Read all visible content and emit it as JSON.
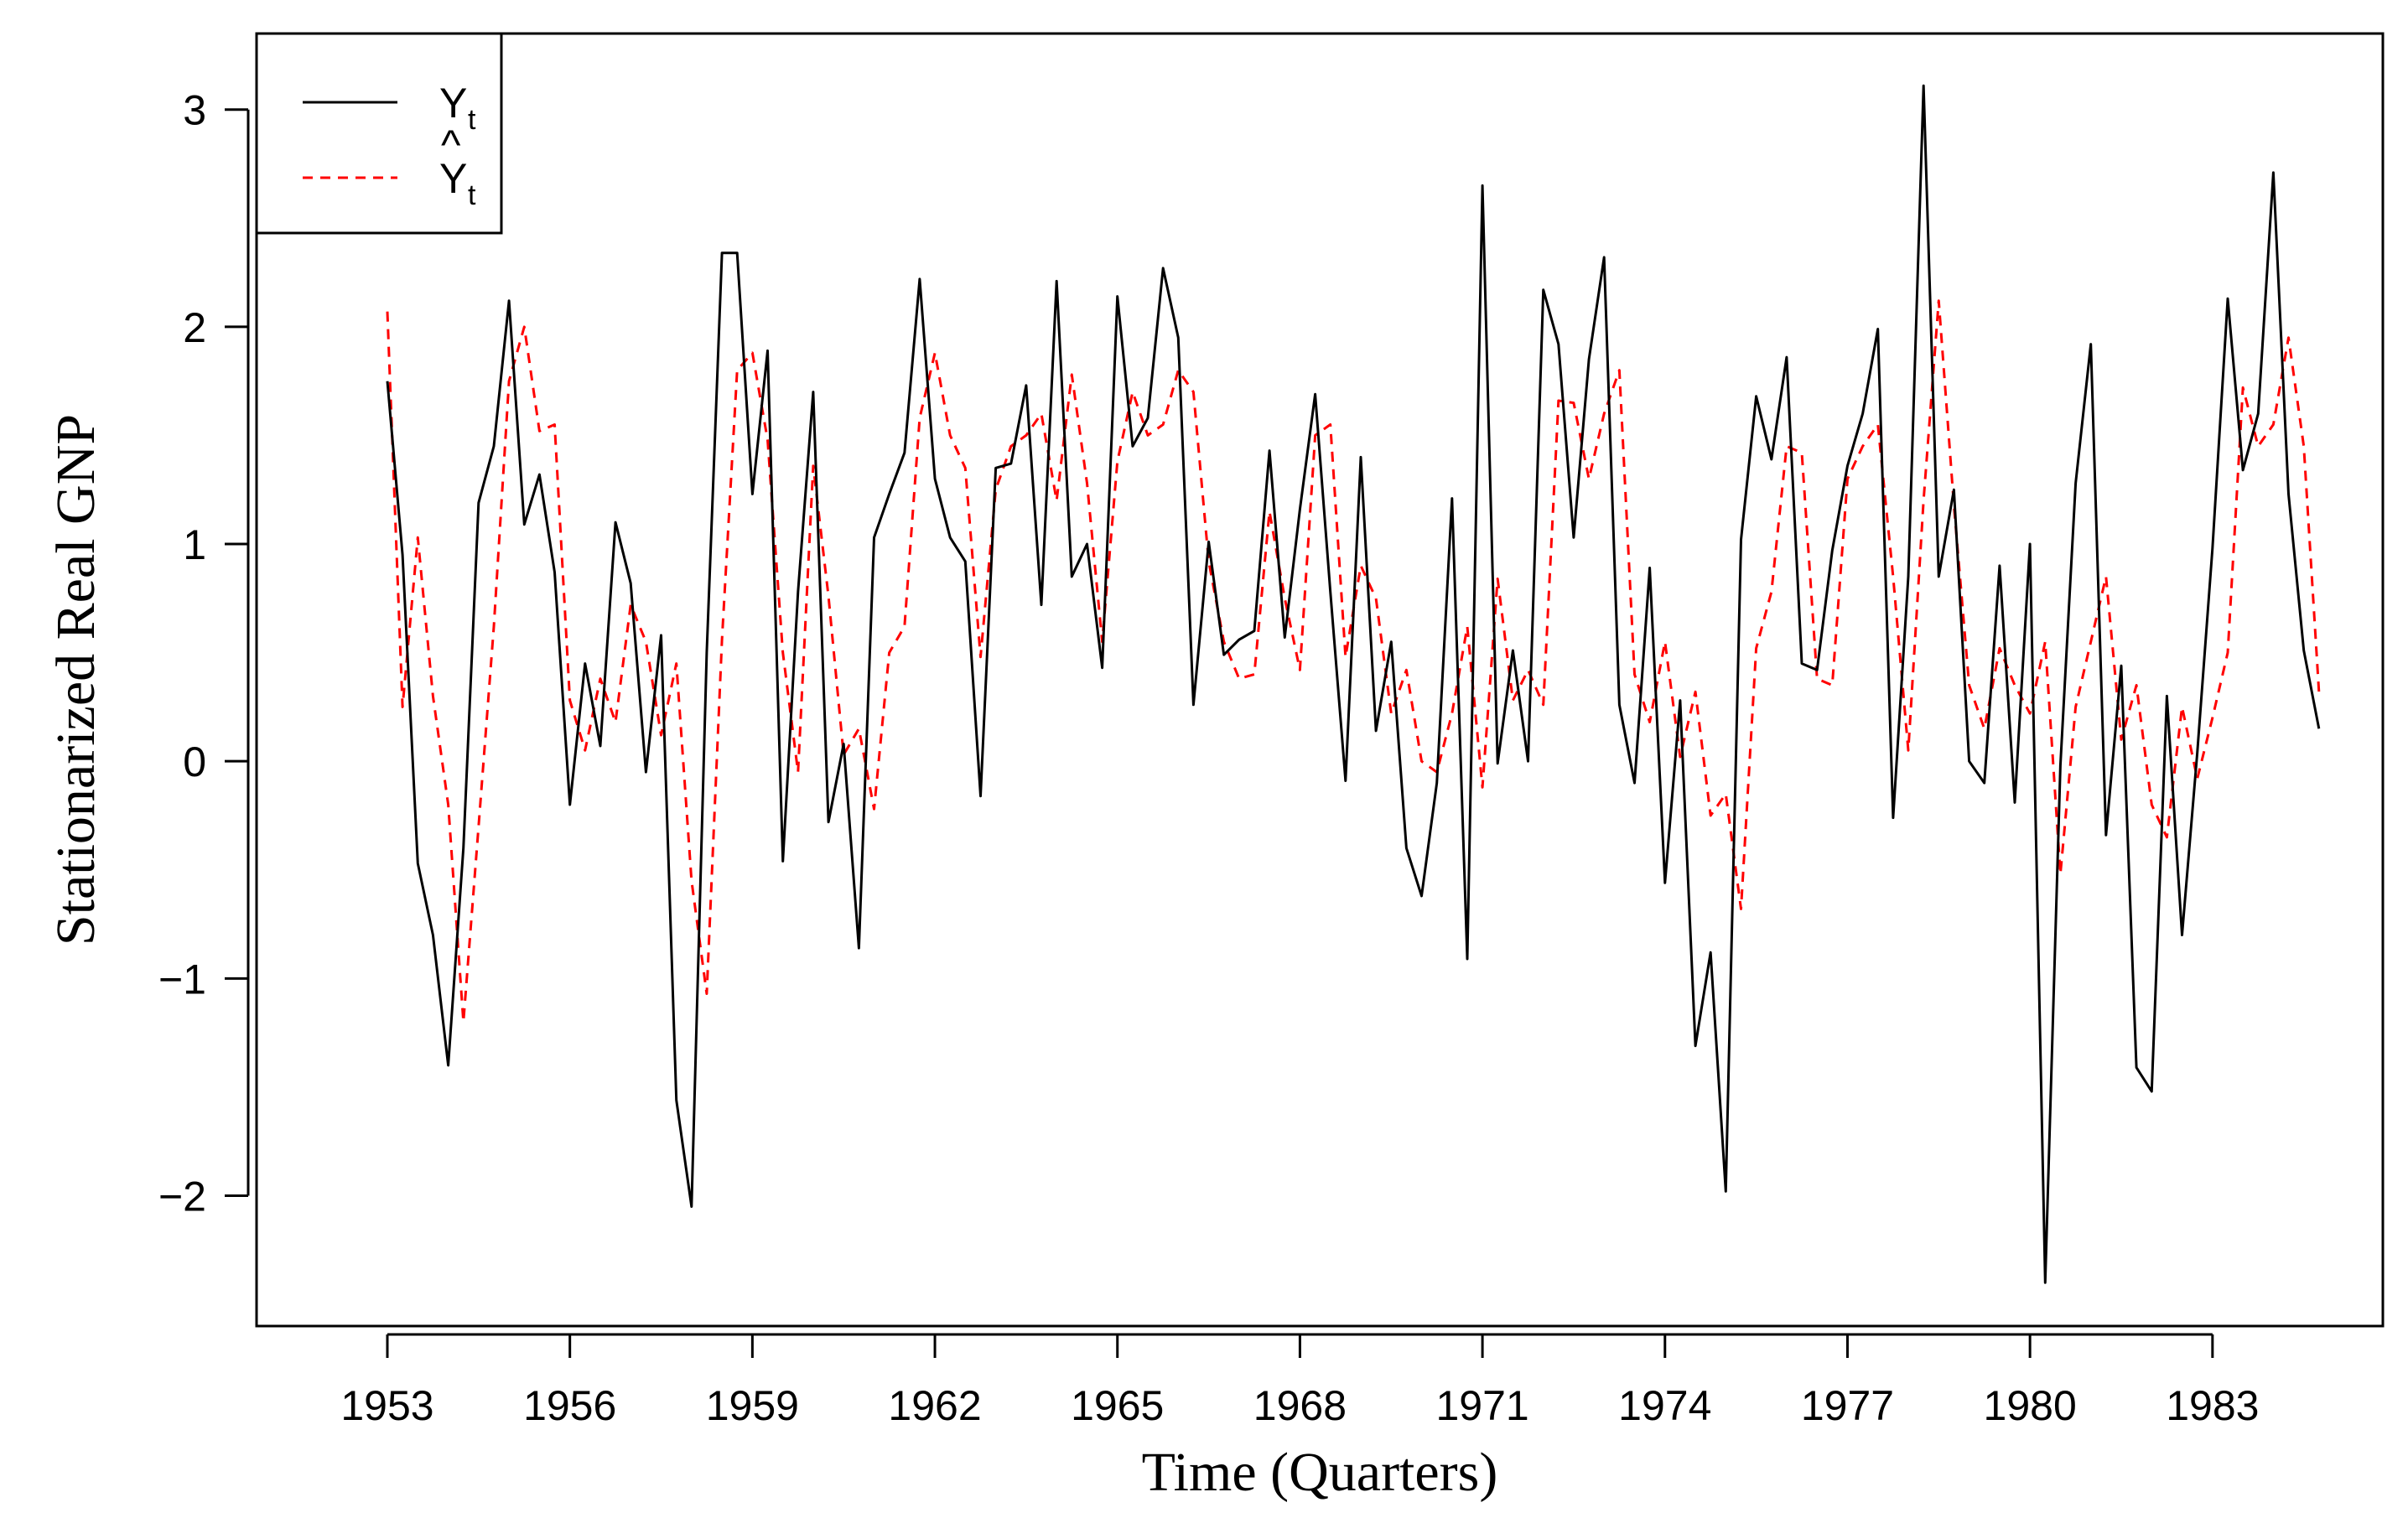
{
  "chart_data": {
    "type": "line",
    "title": "",
    "xlabel": "Time (Quarters)",
    "ylabel": "Stationarized Real GNP",
    "xlim": [
      1950.85,
      1985.8
    ],
    "ylim": [
      -2.6,
      3.35
    ],
    "xticks": [
      1953,
      1956,
      1959,
      1962,
      1965,
      1968,
      1971,
      1974,
      1977,
      1980,
      1983
    ],
    "xtick_labels": [
      "1953",
      "1956",
      "1959",
      "1962",
      "1965",
      "1968",
      "1971",
      "1974",
      "1977",
      "1980",
      "1983"
    ],
    "yticks": [
      -2,
      -1,
      0,
      1,
      2,
      3
    ],
    "ytick_labels": [
      "−2",
      "−1",
      "0",
      "1",
      "2",
      "3"
    ],
    "x_start": 1953,
    "x_step": 0.25,
    "legend": {
      "position": "top-left",
      "entries": [
        {
          "main": "Y",
          "sub": "t",
          "hat": false,
          "color": "#000000",
          "style": "solid"
        },
        {
          "main": "Y",
          "sub": "t",
          "hat": true,
          "hat_glyph": "^",
          "color": "#ff0000",
          "style": "dashed"
        }
      ]
    },
    "series": [
      {
        "name": "Y_t",
        "color": "#000000",
        "style": "solid",
        "values": [
          1.75,
          0.95,
          -0.47,
          -0.8,
          -1.4,
          -0.4,
          1.19,
          1.45,
          2.12,
          1.09,
          1.32,
          0.87,
          -0.2,
          0.45,
          0.07,
          1.1,
          0.82,
          -0.05,
          0.58,
          -1.56,
          -2.05,
          0.5,
          2.34,
          2.34,
          1.23,
          1.89,
          -0.46,
          0.78,
          1.7,
          -0.28,
          0.08,
          -0.86,
          1.03,
          1.23,
          1.42,
          2.22,
          1.3,
          1.03,
          0.92,
          -0.16,
          1.35,
          1.37,
          1.73,
          0.72,
          2.21,
          0.85,
          1.0,
          0.43,
          2.14,
          1.45,
          1.58,
          2.27,
          1.95,
          0.26,
          1.01,
          0.49,
          0.56,
          0.6,
          1.43,
          0.57,
          1.16,
          1.69,
          0.78,
          -0.09,
          1.4,
          0.14,
          0.55,
          -0.4,
          -0.62,
          -0.1,
          1.21,
          -0.91,
          2.65,
          -0.01,
          0.51,
          0.0,
          2.17,
          1.92,
          1.03,
          1.85,
          2.32,
          0.26,
          -0.1,
          0.89,
          -0.56,
          0.28,
          -1.31,
          -0.88,
          -1.98,
          1.02,
          1.68,
          1.39,
          1.86,
          0.45,
          0.42,
          0.97,
          1.36,
          1.6,
          1.99,
          -0.26,
          0.85,
          3.11,
          0.85,
          1.25,
          0.0,
          -0.1,
          0.9,
          -0.19,
          1.0,
          -2.4,
          -0.02,
          1.28,
          1.92,
          -0.34,
          0.44,
          -1.41,
          -1.52,
          0.3,
          -0.8,
          0.04,
          0.98,
          2.13,
          1.34,
          1.6,
          2.71,
          1.23,
          0.51,
          0.15
        ]
      },
      {
        "name": "Ŷ_t",
        "color": "#ff0000",
        "style": "dashed",
        "values": [
          2.07,
          0.25,
          1.03,
          0.3,
          -0.2,
          -1.2,
          -0.3,
          0.62,
          1.75,
          2.0,
          1.52,
          1.55,
          0.28,
          0.05,
          0.38,
          0.18,
          0.72,
          0.55,
          0.12,
          0.45,
          -0.55,
          -1.07,
          0.56,
          1.8,
          1.88,
          1.48,
          0.5,
          -0.05,
          1.36,
          0.76,
          0.03,
          0.15,
          -0.22,
          0.5,
          0.62,
          1.58,
          1.88,
          1.5,
          1.35,
          0.48,
          1.25,
          1.45,
          1.5,
          1.6,
          1.2,
          1.78,
          1.28,
          0.55,
          1.38,
          1.7,
          1.5,
          1.55,
          1.8,
          1.7,
          0.92,
          0.55,
          0.38,
          0.4,
          1.15,
          0.75,
          0.42,
          1.5,
          1.55,
          0.48,
          0.9,
          0.75,
          0.22,
          0.42,
          0.0,
          -0.05,
          0.22,
          0.62,
          -0.12,
          0.84,
          0.28,
          0.42,
          0.26,
          1.66,
          1.65,
          1.3,
          1.6,
          1.8,
          0.4,
          0.18,
          0.55,
          0.02,
          0.32,
          -0.25,
          -0.15,
          -0.68,
          0.52,
          0.78,
          1.45,
          1.42,
          0.38,
          0.35,
          1.3,
          1.45,
          1.55,
          0.85,
          0.05,
          1.2,
          2.12,
          1.18,
          0.35,
          0.15,
          0.52,
          0.35,
          0.22,
          0.55,
          -0.52,
          0.25,
          0.55,
          0.85,
          0.1,
          0.35,
          -0.2,
          -0.35,
          0.25,
          -0.08,
          0.2,
          0.5,
          1.72,
          1.45,
          1.55,
          1.95,
          1.45,
          0.32
        ]
      }
    ]
  }
}
